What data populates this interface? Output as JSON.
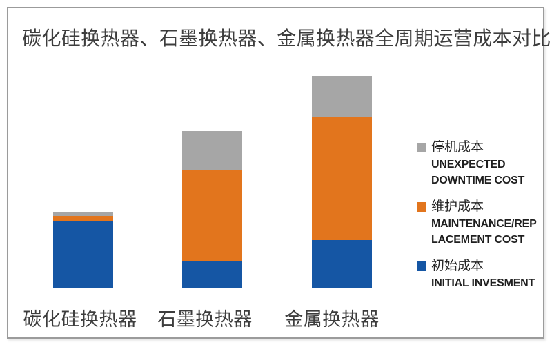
{
  "frame": {
    "border_color": "#9b9b9b",
    "background": "#ffffff"
  },
  "chart_data": {
    "type": "bar",
    "stacked": true,
    "title": "碳化硅换热器、石墨换热器、金属换热器全周期运营成本对比",
    "categories": [
      "碳化硅换热器",
      "石墨换热器",
      "金属换热器"
    ],
    "series": [
      {
        "key": "initial-cost",
        "name": "初始成本 INITIAL INVESMENT",
        "color": "#1556A4",
        "values": [
          31.6,
          12.4,
          22.5
        ]
      },
      {
        "key": "maintenance-cost",
        "name": "维护成本 MAINTENANCE/REPLACEMENT COST",
        "color": "#E2751D",
        "values": [
          2.3,
          43.0,
          58.3
        ]
      },
      {
        "key": "downtime-cost",
        "name": "停机成本 UNEXPECTED DOWNTIME COST",
        "color": "#A6A6A6",
        "values": [
          1.6,
          18.6,
          19.2
        ]
      }
    ],
    "value_units": "relative lifecycle cost, estimated from bar heights (metal exchanger total = 100)",
    "ylim": [
      0,
      100
    ],
    "grid": false,
    "axes_shown": false,
    "data_labels": false,
    "legend_position": "right"
  },
  "legend": {
    "items": [
      {
        "key": "downtime-cost",
        "label_zh": "停机成本",
        "lines_en": [
          "UNEXPECTED",
          "DOWNTIME COST"
        ],
        "color": "#A6A6A6"
      },
      {
        "key": "maintenance-cost",
        "label_zh": "维护成本",
        "lines_en": [
          "MAINTENANCE/REP",
          "LACEMENT  COST"
        ],
        "color": "#E2751D"
      },
      {
        "key": "initial-cost",
        "label_zh": "初始成本",
        "lines_en": [
          "INITIAL INVESMENT"
        ],
        "color": "#1556A4"
      }
    ]
  }
}
